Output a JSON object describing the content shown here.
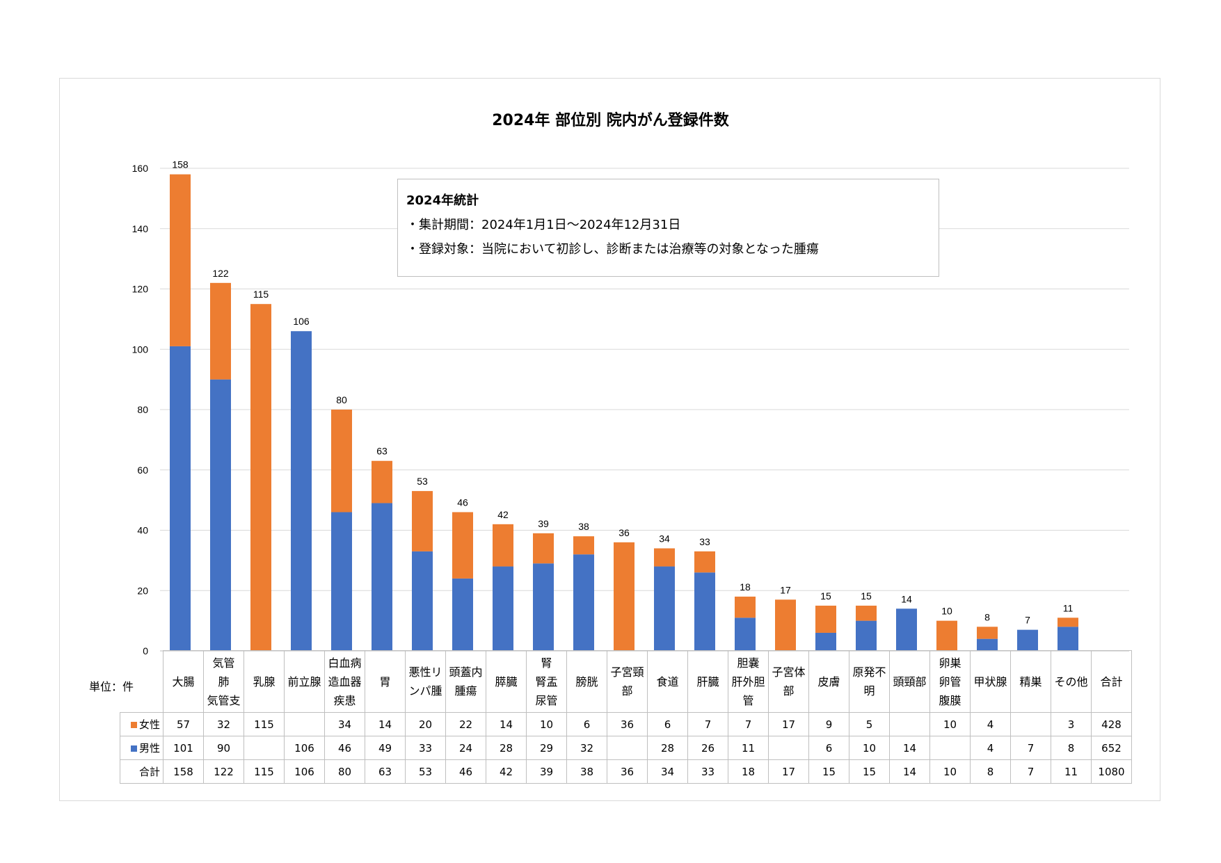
{
  "chart_data": {
    "type": "bar",
    "stacked": true,
    "title": "2024年 部位別 院内がん登録件数",
    "unit_label": "単位：件",
    "ylim": [
      0,
      160
    ],
    "yticks": [
      "0",
      "20",
      "40",
      "60",
      "80",
      "100",
      "120",
      "140",
      "160"
    ],
    "grid": true,
    "categories": [
      [
        "大腸"
      ],
      [
        "気管",
        "肺",
        "気管支"
      ],
      [
        "乳腺"
      ],
      [
        "前立腺"
      ],
      [
        "白血病",
        "造血器",
        "疾患"
      ],
      [
        "胃"
      ],
      [
        "悪性リ",
        "ンパ腫"
      ],
      [
        "頭蓋内",
        "腫瘍"
      ],
      [
        "膵臓"
      ],
      [
        "腎",
        "腎盂",
        "尿管"
      ],
      [
        "膀胱"
      ],
      [
        "子宮頸",
        "部"
      ],
      [
        "食道"
      ],
      [
        "肝臓"
      ],
      [
        "胆嚢",
        "肝外胆",
        "管"
      ],
      [
        "子宮体",
        "部"
      ],
      [
        "皮膚"
      ],
      [
        "原発不",
        "明"
      ],
      [
        "頭頸部"
      ],
      [
        "卵巣",
        "卵管",
        "腹膜"
      ],
      [
        "甲状腺"
      ],
      [
        "精巣"
      ],
      [
        "その他"
      ]
    ],
    "total_header": "合計",
    "series": [
      {
        "name": "女性",
        "color": "#ED7D31",
        "values": [
          57,
          32,
          115,
          null,
          34,
          14,
          20,
          22,
          14,
          10,
          6,
          36,
          6,
          7,
          7,
          17,
          9,
          5,
          null,
          10,
          4,
          null,
          3
        ],
        "total": 428
      },
      {
        "name": "男性",
        "color": "#4472C4",
        "values": [
          101,
          90,
          null,
          106,
          46,
          49,
          33,
          24,
          28,
          29,
          32,
          null,
          28,
          26,
          11,
          null,
          6,
          10,
          14,
          null,
          4,
          7,
          8
        ],
        "total": 652
      }
    ],
    "totals_label": "合計",
    "totals": [
      158,
      122,
      115,
      106,
      80,
      63,
      53,
      46,
      42,
      39,
      38,
      36,
      34,
      33,
      18,
      17,
      15,
      15,
      14,
      10,
      8,
      7,
      11
    ],
    "grand_total": 1080
  },
  "info_box": {
    "heading": "2024年統計",
    "line1": "・集計期間：2024年1月1日〜2024年12月31日",
    "line2": "・登録対象：当院において初診し、診断または治療等の対象となった腫瘍"
  }
}
